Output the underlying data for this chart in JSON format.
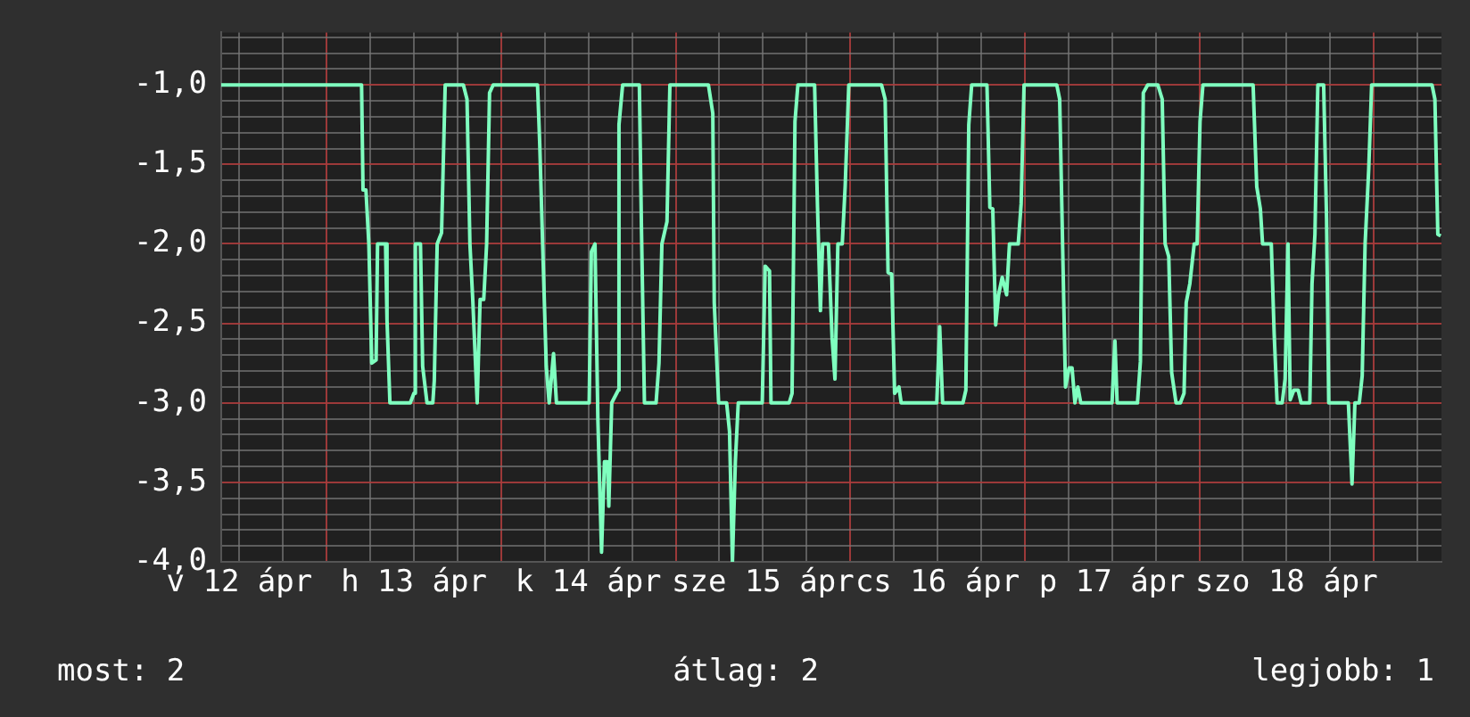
{
  "chart_data": {
    "type": "line",
    "x": [
      "--04-12T09:30",
      "--04-13T04:48",
      "--04-13T05:00",
      "--04-13T05:24",
      "--04-13T05:48",
      "--04-13T06:12",
      "--04-13T06:48",
      "--04-13T07:00",
      "--04-13T08:06",
      "--04-13T08:18",
      "--04-13T08:42",
      "--04-13T11:30",
      "--04-13T12:00",
      "--04-13T12:12",
      "--04-13T12:54",
      "--04-13T13:12",
      "--04-13T13:48",
      "--04-13T14:36",
      "--04-13T14:48",
      "--04-13T15:12",
      "--04-13T15:48",
      "--04-13T16:18",
      "--04-13T18:48",
      "--04-13T19:18",
      "--04-13T19:42",
      "--04-13T20:06",
      "--04-13T20:42",
      "--04-13T21:06",
      "--04-13T21:36",
      "--04-13T22:00",
      "--04-13T22:24",
      "--04-13T22:54",
      "--04-14T05:00",
      "--04-14T05:18",
      "--04-14T05:42",
      "--04-14T06:12",
      "--04-14T06:36",
      "--04-14T07:12",
      "--04-14T07:36",
      "--04-14T12:06",
      "--04-14T12:24",
      "--04-14T12:54",
      "--04-14T13:18",
      "--04-14T13:48",
      "--04-14T14:12",
      "--04-14T14:36",
      "--04-14T14:48",
      "--04-14T15:12",
      "--04-14T16:06",
      "--04-14T16:12",
      "--04-14T16:42",
      "--04-14T19:00",
      "--04-14T19:18",
      "--04-14T19:42",
      "--04-14T21:18",
      "--04-14T21:42",
      "--04-14T22:06",
      "--04-14T22:48",
      "--04-14T23:12",
      "--04-15T04:30",
      "--04-15T05:06",
      "--04-15T05:18",
      "--04-15T05:54",
      "--04-15T07:00",
      "--04-15T07:24",
      "--04-15T07:48",
      "--04-15T08:12",
      "--04-15T08:36",
      "--04-15T11:54",
      "--04-15T12:18",
      "--04-15T12:54",
      "--04-15T13:06",
      "--04-15T15:36",
      "--04-15T16:00",
      "--04-15T16:24",
      "--04-15T16:48",
      "--04-15T19:06",
      "--04-15T19:30",
      "--04-15T19:54",
      "--04-15T20:12",
      "--04-15T21:00",
      "--04-15T21:30",
      "--04-15T21:54",
      "--04-15T22:18",
      "--04-15T22:54",
      "--04-15T23:18",
      "--04-15T23:48",
      "--04-16T04:18",
      "--04-16T04:48",
      "--04-16T05:12",
      "--04-16T05:42",
      "--04-16T06:06",
      "--04-16T06:42",
      "--04-16T07:00",
      "--04-16T11:54",
      "--04-16T12:18",
      "--04-16T12:42",
      "--04-16T15:30",
      "--04-16T15:54",
      "--04-16T16:18",
      "--04-16T16:42",
      "--04-16T18:48",
      "--04-16T19:12",
      "--04-16T19:36",
      "--04-16T20:00",
      "--04-16T20:24",
      "--04-16T20:54",
      "--04-16T21:30",
      "--04-16T21:54",
      "--04-16T23:06",
      "--04-16T23:30",
      "--04-16T23:54",
      "--04-17T04:24",
      "--04-17T04:48",
      "--04-17T05:12",
      "--04-17T05:36",
      "--04-17T06:06",
      "--04-17T06:30",
      "--04-17T06:54",
      "--04-17T07:18",
      "--04-17T07:42",
      "--04-17T12:00",
      "--04-17T12:24",
      "--04-17T12:42",
      "--04-17T15:30",
      "--04-17T15:54",
      "--04-17T16:18",
      "--04-17T16:54",
      "--04-17T18:18",
      "--04-17T18:54",
      "--04-17T19:18",
      "--04-17T19:48",
      "--04-17T20:12",
      "--04-17T20:48",
      "--04-17T21:24",
      "--04-17T21:54",
      "--04-17T22:12",
      "--04-17T22:42",
      "--04-17T23:18",
      "--04-17T23:42",
      "--04-18T00:06",
      "--04-18T00:30",
      "--04-18T07:24",
      "--04-18T07:54",
      "--04-18T08:24",
      "--04-18T08:42",
      "--04-18T09:54",
      "--04-18T10:18",
      "--04-18T10:42",
      "--04-18T11:24",
      "--04-18T11:48",
      "--04-18T12:12",
      "--04-18T12:30",
      "--04-18T13:00",
      "--04-18T13:36",
      "--04-18T14:00",
      "--04-18T15:12",
      "--04-18T15:30",
      "--04-18T15:54",
      "--04-18T16:18",
      "--04-18T17:06",
      "--04-18T17:30",
      "--04-18T17:48",
      "--04-18T20:30",
      "--04-18T21:00",
      "--04-18T21:24",
      "--04-18T22:00",
      "--04-18T22:24",
      "--04-18T22:48",
      "--04-18T23:18",
      "--04-18T23:42",
      "--04-19T08:00",
      "--04-19T08:24",
      "--04-19T08:48",
      "--04-19T09:12"
    ],
    "values": [
      -1.0,
      -1.0,
      -1.66,
      -1.66,
      -2.0,
      -2.75,
      -2.73,
      -2.0,
      -2.0,
      -2.48,
      -3.0,
      -3.0,
      -2.94,
      -2.0,
      -2.0,
      -2.77,
      -3.0,
      -3.0,
      -2.86,
      -2.0,
      -1.93,
      -1.0,
      -1.0,
      -1.09,
      -2.0,
      -2.36,
      -3.0,
      -2.35,
      -2.35,
      -2.0,
      -1.05,
      -1.0,
      -1.0,
      -1.37,
      -2.0,
      -2.77,
      -3.0,
      -2.69,
      -3.0,
      -3.0,
      -2.05,
      -2.0,
      -3.11,
      -3.94,
      -3.37,
      -3.37,
      -3.65,
      -3.0,
      -2.92,
      -1.25,
      -1.0,
      -1.0,
      -1.93,
      -3.0,
      -3.0,
      -2.75,
      -2.0,
      -1.86,
      -1.0,
      -1.0,
      -1.18,
      -2.37,
      -3.0,
      -3.0,
      -3.18,
      -4.0,
      -3.37,
      -3.0,
      -3.0,
      -2.14,
      -2.17,
      -3.0,
      -3.0,
      -2.94,
      -1.23,
      -1.0,
      -1.0,
      -1.77,
      -2.42,
      -2.0,
      -2.0,
      -2.59,
      -2.85,
      -2.0,
      -2.0,
      -1.64,
      -1.0,
      -1.0,
      -1.09,
      -2.18,
      -2.19,
      -2.94,
      -2.9,
      -3.0,
      -3.0,
      -2.52,
      -3.0,
      -3.0,
      -2.92,
      -1.25,
      -1.0,
      -1.0,
      -1.77,
      -1.78,
      -2.51,
      -2.32,
      -2.21,
      -2.32,
      -2.0,
      -2.0,
      -1.75,
      -1.0,
      -1.0,
      -1.09,
      -2.0,
      -2.9,
      -2.78,
      -2.78,
      -3.0,
      -2.9,
      -3.0,
      -3.0,
      -2.61,
      -3.0,
      -3.0,
      -2.74,
      -1.05,
      -1.0,
      -1.0,
      -1.09,
      -2.0,
      -2.08,
      -2.81,
      -3.0,
      -3.0,
      -2.94,
      -2.37,
      -2.25,
      -2.0,
      -2.0,
      -1.23,
      -1.0,
      -1.0,
      -1.64,
      -1.78,
      -2.0,
      -2.0,
      -2.57,
      -3.0,
      -3.0,
      -2.85,
      -2.0,
      -2.98,
      -2.92,
      -2.92,
      -3.0,
      -3.0,
      -2.25,
      -1.94,
      -1.0,
      -1.0,
      -1.84,
      -3.0,
      -3.0,
      -3.51,
      -3.0,
      -3.0,
      -2.83,
      -2.0,
      -1.53,
      -1.0,
      -1.0,
      -1.09,
      -1.94,
      -1.95
    ],
    "color": "#7fffbf",
    "xlim": [
      "--04-12T09:30",
      "--04-19T09:18"
    ],
    "xticks": [
      {
        "value": "--04-12T12:00",
        "label": "v 12 ápr"
      },
      {
        "value": "--04-12T18:00",
        "label": null
      },
      {
        "value": "--04-13T00:00",
        "label": null
      },
      {
        "value": "--04-13T06:00",
        "label": null
      },
      {
        "value": "--04-13T12:00",
        "label": "h 13 ápr"
      },
      {
        "value": "--04-13T18:00",
        "label": null
      },
      {
        "value": "--04-14T00:00",
        "label": null
      },
      {
        "value": "--04-14T06:00",
        "label": null
      },
      {
        "value": "--04-14T12:00",
        "label": "k 14 ápr"
      },
      {
        "value": "--04-14T18:00",
        "label": null
      },
      {
        "value": "--04-15T00:00",
        "label": null
      },
      {
        "value": "--04-15T06:00",
        "label": null
      },
      {
        "value": "--04-15T12:00",
        "label": "sze 15 ápr"
      },
      {
        "value": "--04-15T18:00",
        "label": null
      },
      {
        "value": "--04-16T00:00",
        "label": null
      },
      {
        "value": "--04-16T06:00",
        "label": null
      },
      {
        "value": "--04-16T12:00",
        "label": "cs 16 ápr"
      },
      {
        "value": "--04-16T18:00",
        "label": null
      },
      {
        "value": "--04-17T00:00",
        "label": null
      },
      {
        "value": "--04-17T06:00",
        "label": null
      },
      {
        "value": "--04-17T12:00",
        "label": "p 17 ápr"
      },
      {
        "value": "--04-17T18:00",
        "label": null
      },
      {
        "value": "--04-18T00:00",
        "label": null
      },
      {
        "value": "--04-18T06:00",
        "label": null
      },
      {
        "value": "--04-18T12:00",
        "label": "szo 18 ápr"
      },
      {
        "value": "--04-18T18:00",
        "label": null
      },
      {
        "value": "--04-19T00:00",
        "label": null
      },
      {
        "value": "--04-19T06:00",
        "label": null
      }
    ],
    "ylim": [
      -4.0,
      -0.67
    ],
    "yticks": [
      {
        "value": -4.0,
        "label": "-4,0"
      },
      {
        "value": -3.9,
        "label": null
      },
      {
        "value": -3.8,
        "label": null
      },
      {
        "value": -3.7,
        "label": null
      },
      {
        "value": -3.6,
        "label": null
      },
      {
        "value": -3.5,
        "label": "-3,5"
      },
      {
        "value": -3.4,
        "label": null
      },
      {
        "value": -3.3,
        "label": null
      },
      {
        "value": -3.2,
        "label": null
      },
      {
        "value": -3.1,
        "label": null
      },
      {
        "value": -3.0,
        "label": "-3,0"
      },
      {
        "value": -2.9,
        "label": null
      },
      {
        "value": -2.8,
        "label": null
      },
      {
        "value": -2.7,
        "label": null
      },
      {
        "value": -2.6,
        "label": null
      },
      {
        "value": -2.5,
        "label": "-2,5"
      },
      {
        "value": -2.4,
        "label": null
      },
      {
        "value": -2.3,
        "label": null
      },
      {
        "value": -2.2,
        "label": null
      },
      {
        "value": -2.1,
        "label": null
      },
      {
        "value": -2.0,
        "label": "-2,0"
      },
      {
        "value": -1.9,
        "label": null
      },
      {
        "value": -1.8,
        "label": null
      },
      {
        "value": -1.7,
        "label": null
      },
      {
        "value": -1.6,
        "label": null
      },
      {
        "value": -1.5,
        "label": "-1,5"
      },
      {
        "value": -1.4,
        "label": null
      },
      {
        "value": -1.3,
        "label": null
      },
      {
        "value": -1.2,
        "label": null
      },
      {
        "value": -1.1,
        "label": null
      },
      {
        "value": -1.0,
        "label": "-1,0"
      },
      {
        "value": -0.9,
        "label": null
      },
      {
        "value": -0.8,
        "label": null
      },
      {
        "value": -0.7,
        "label": null
      }
    ],
    "grid": true,
    "marker": "none",
    "legend": false,
    "annotations": [
      "most: 2",
      "átlag: 2",
      "legjobb: 1"
    ]
  }
}
